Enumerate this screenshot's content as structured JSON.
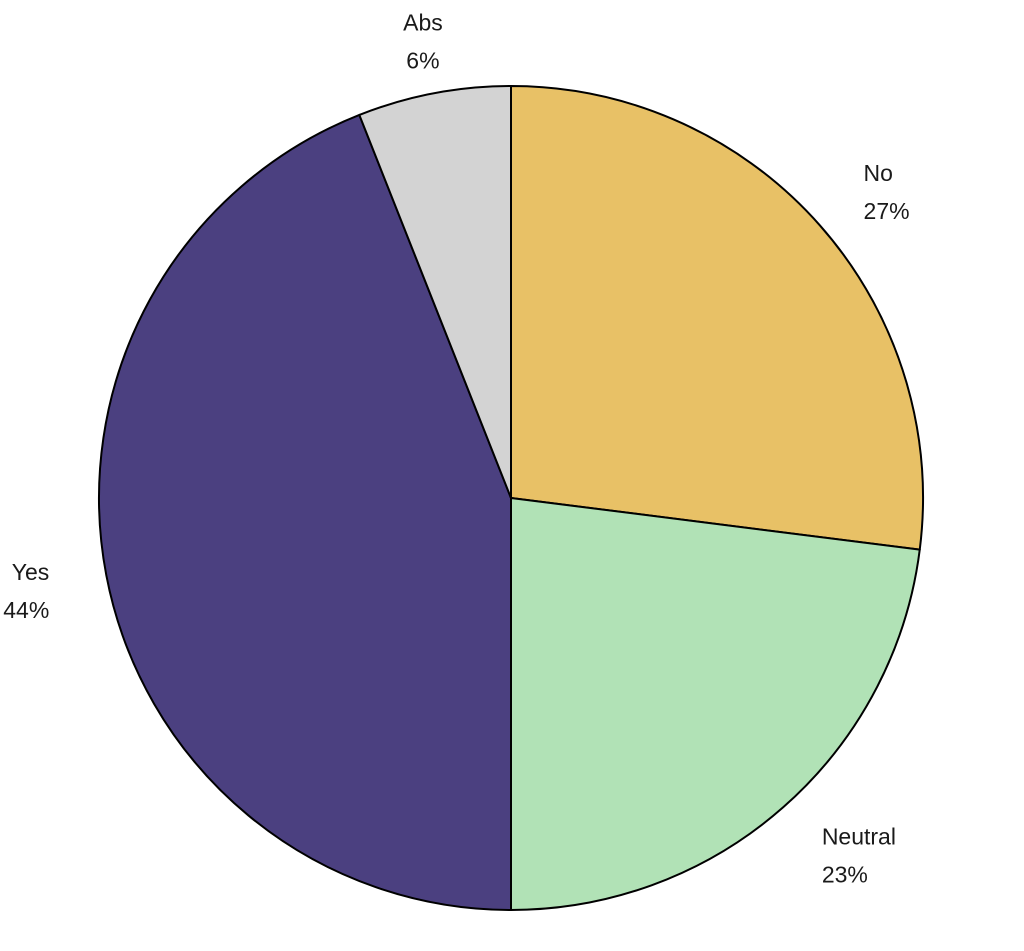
{
  "chart_data": {
    "type": "pie",
    "start_angle_deg": 0,
    "direction": "clockwise",
    "slices": [
      {
        "label": "No",
        "value": 27,
        "percent_label": "27%",
        "color": "#E8C166"
      },
      {
        "label": "Neutral",
        "value": 23,
        "percent_label": "23%",
        "color": "#B1E2B6"
      },
      {
        "label": "Yes",
        "value": 44,
        "percent_label": "44%",
        "color": "#4B4080"
      },
      {
        "label": "Abs",
        "value": 6,
        "percent_label": "6%",
        "color": "#D3D3D3"
      }
    ],
    "outline_color": "#000000"
  }
}
